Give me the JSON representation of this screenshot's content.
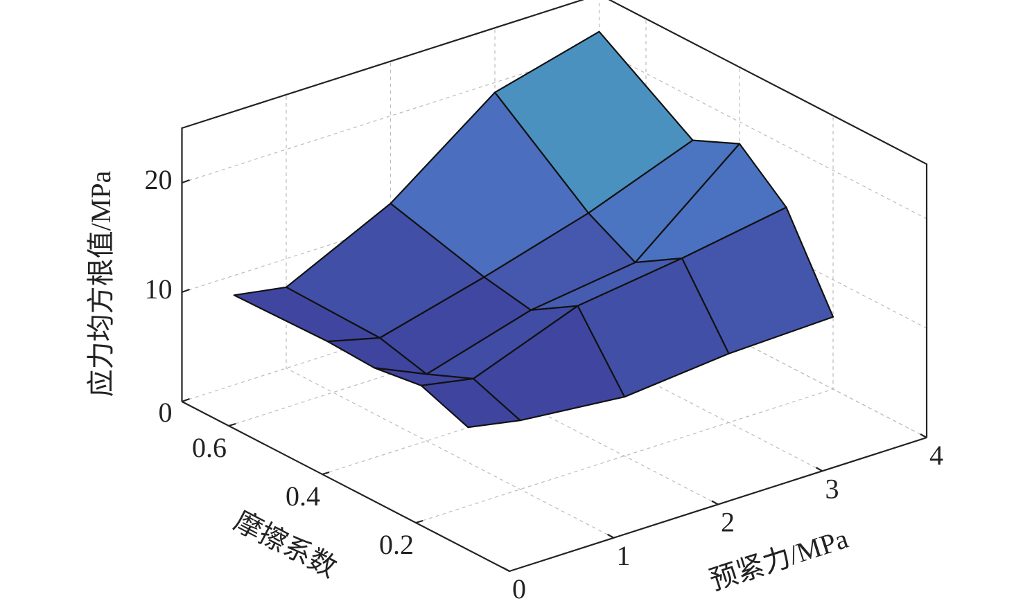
{
  "chart_data": {
    "type": "surface",
    "x_label": "预紧力/MPa",
    "y_label": "摩擦系数",
    "z_label": "应力均方根值/MPa",
    "x": [
      0.5,
      1,
      2,
      3,
      4
    ],
    "y": [
      0.2,
      0.3,
      0.4,
      0.5,
      0.7
    ],
    "z": [
      [
        7.2,
        6.3,
        5.4,
        6.3,
        6.6
      ],
      [
        8.8,
        7.9,
        11.5,
        12.8,
        14.4
      ],
      [
        8.2,
        6.1,
        8.9,
        10.2,
        18.0
      ],
      [
        8.4,
        7.2,
        9.7,
        12.5,
        16.1
      ],
      [
        8.2,
        7.4,
        12.0,
        19.1,
        21.6
      ]
    ],
    "xlim": [
      0,
      4
    ],
    "ylim": [
      0,
      0.7
    ],
    "zlim": [
      0,
      25
    ],
    "xticks": [
      0,
      1,
      2,
      3,
      4
    ],
    "yticks": [
      0.2,
      0.4,
      0.6
    ],
    "zticks": [
      0,
      10,
      20
    ],
    "grid": true,
    "colormap": [
      "#3b3592",
      "#4b6fc0",
      "#48b6bf"
    ]
  }
}
